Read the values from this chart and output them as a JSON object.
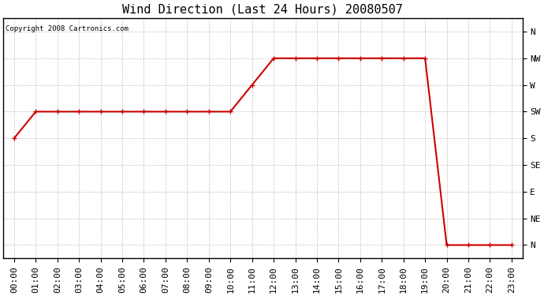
{
  "title": "Wind Direction (Last 24 Hours) 20080507",
  "copyright_text": "Copyright 2008 Cartronics.com",
  "line_color": "#cc0000",
  "background_color": "#ffffff",
  "plot_background": "#ffffff",
  "grid_color": "#aaaaaa",
  "ytick_labels": [
    "N",
    "NW",
    "W",
    "SW",
    "S",
    "SE",
    "E",
    "NE",
    "N"
  ],
  "ytick_values": [
    8,
    7,
    6,
    5,
    4,
    3,
    2,
    1,
    0
  ],
  "xlim": [
    -0.5,
    23.5
  ],
  "ylim": [
    -0.5,
    8.5
  ],
  "hours": [
    0,
    1,
    2,
    3,
    4,
    5,
    6,
    7,
    8,
    9,
    10,
    11,
    12,
    13,
    14,
    15,
    16,
    17,
    18,
    19,
    20,
    21,
    22,
    23
  ],
  "wind_dir": [
    4,
    5,
    5,
    5,
    5,
    5,
    5,
    5,
    5,
    5,
    5,
    6,
    7,
    7,
    7,
    7,
    7,
    7,
    7,
    7,
    0,
    0,
    0,
    0
  ],
  "marker": "+",
  "marker_size": 5,
  "line_width": 1.5,
  "title_fontsize": 11,
  "tick_fontsize": 8,
  "figsize": [
    6.9,
    3.75
  ],
  "dpi": 100
}
